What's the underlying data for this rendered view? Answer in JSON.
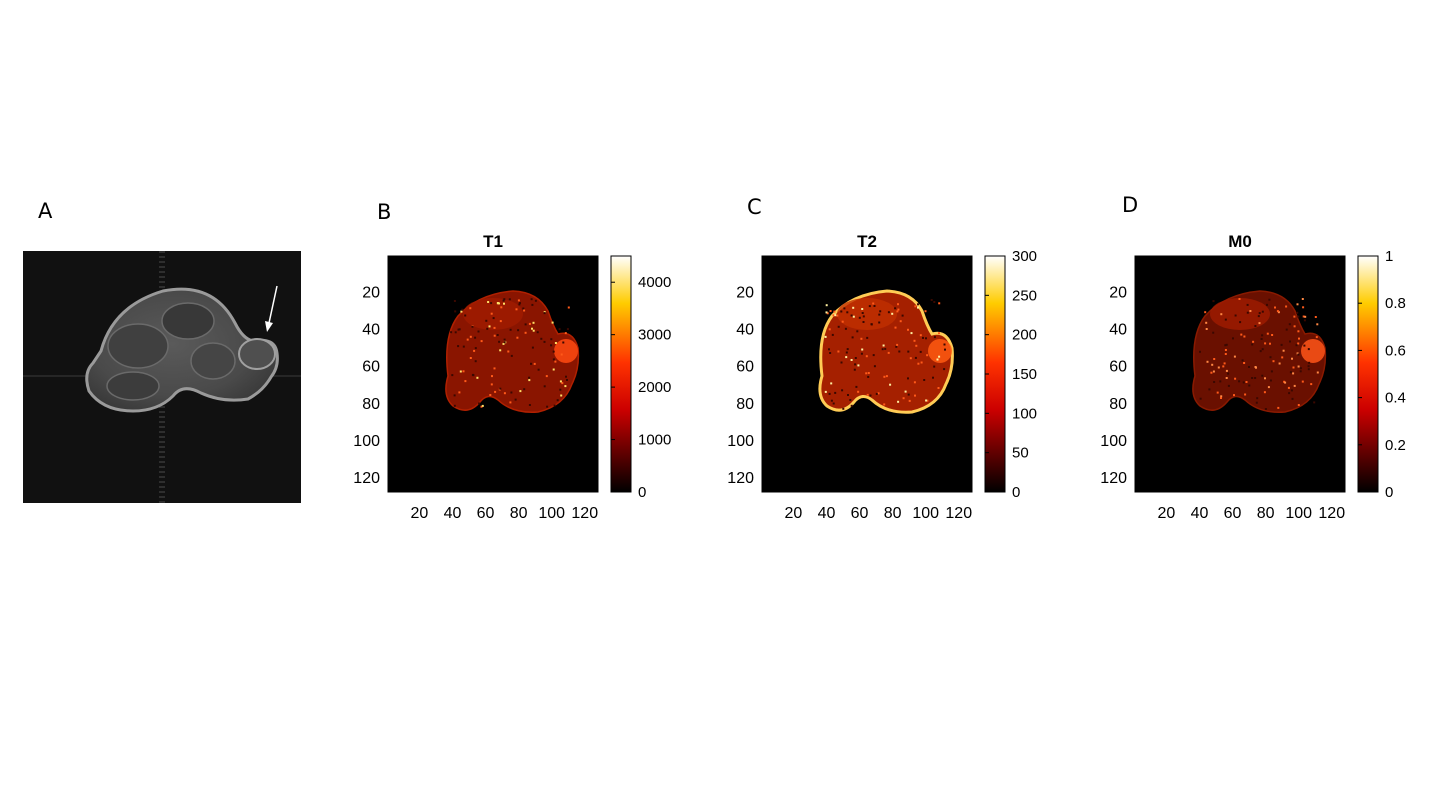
{
  "figure": {
    "panel_labels": [
      "A",
      "B",
      "C",
      "D"
    ]
  },
  "chart_data": [
    {
      "type": "heatmap",
      "title": "T1",
      "x_ticks": [
        20,
        40,
        60,
        80,
        100,
        120
      ],
      "y_ticks": [
        20,
        40,
        60,
        80,
        100,
        120
      ],
      "xlim": [
        1,
        128
      ],
      "ylim": [
        1,
        128
      ],
      "colorbar_ticks": [
        0,
        1000,
        2000,
        3000,
        4000
      ],
      "colorbar_range": [
        0,
        4500
      ],
      "colormap": "hot"
    },
    {
      "type": "heatmap",
      "title": "T2",
      "x_ticks": [
        20,
        40,
        60,
        80,
        100,
        120
      ],
      "y_ticks": [
        20,
        40,
        60,
        80,
        100,
        120
      ],
      "xlim": [
        1,
        128
      ],
      "ylim": [
        1,
        128
      ],
      "colorbar_ticks": [
        0,
        50,
        100,
        150,
        200,
        250,
        300
      ],
      "colorbar_range": [
        0,
        300
      ],
      "colormap": "hot"
    },
    {
      "type": "heatmap",
      "title": "M0",
      "x_ticks": [
        20,
        40,
        60,
        80,
        100,
        120
      ],
      "y_ticks": [
        20,
        40,
        60,
        80,
        100,
        120
      ],
      "xlim": [
        1,
        128
      ],
      "ylim": [
        1,
        128
      ],
      "colorbar_ticks": [
        0,
        0.2,
        0.4,
        0.6,
        0.8,
        1
      ],
      "colorbar_range": [
        0,
        1
      ],
      "colormap": "hot"
    }
  ],
  "colors": {
    "hot_start": "#000000",
    "hot_mid1": "#cc0000",
    "hot_mid2": "#ff3300",
    "hot_mid3": "#ffcc00",
    "hot_end": "#ffffff"
  }
}
